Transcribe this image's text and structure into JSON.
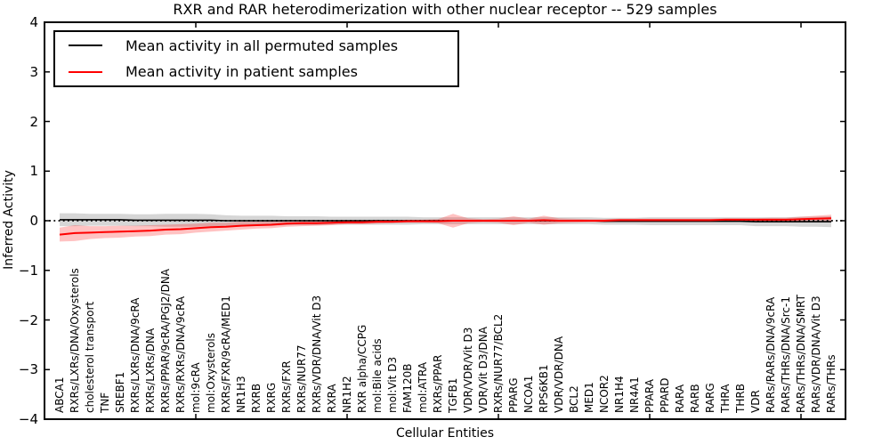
{
  "chart_data": {
    "type": "line",
    "title": "RXR and RAR heterodimerization with other nuclear receptor -- 529 samples",
    "xlabel": "Cellular Entities",
    "ylabel": "Inferred Activity",
    "ylim": [
      -4,
      4
    ],
    "yticks": [
      4,
      3,
      2,
      1,
      0,
      -1,
      -2,
      -3,
      -4
    ],
    "ytick_labels": [
      "4",
      "3",
      "2",
      "1",
      "0",
      "−1",
      "−2",
      "−3",
      "−4"
    ],
    "x_major_tick_indices": [
      10,
      20,
      30,
      40,
      50
    ],
    "grid": false,
    "zero_line_style": "dotted",
    "legend_position": "upper left",
    "categories": [
      "ABCA1",
      "RXRs/LXRs/DNA/Oxysterols",
      "cholesterol transport",
      "TNF",
      "SREBF1",
      "RXRs/LXRs/DNA/9cRA",
      "RXRs/LXRs/DNA",
      "RXRs/PPAR/9cRA/PGJ2/DNA",
      "RXRs/RXRs/DNA/9cRA",
      "mol:9cRA",
      "mol:Oxysterols",
      "RXRs/FXR/9cRA/MED1",
      "NR1H3",
      "RXRB",
      "RXRG",
      "RXRs/FXR",
      "RXRs/NUR77",
      "RXRs/VDR/DNA/Vit D3",
      "RXRA",
      "NR1H2",
      "RXR alpha/CCPG",
      "mol:Bile acids",
      "mol:Vit D3",
      "FAM120B",
      "mol:ATRA",
      "RXRs/PPAR",
      "TGFB1",
      "VDR/VDR/Vit D3",
      "VDR/Vit D3/DNA",
      "RXRs/NUR77/BCL2",
      "PPARG",
      "NCOA1",
      "RPS6KB1",
      "VDR/VDR/DNA",
      "BCL2",
      "MED1",
      "NCOR2",
      "NR1H4",
      "NR4A1",
      "PPARA",
      "PPARD",
      "RARA",
      "RARB",
      "RARG",
      "THRA",
      "THRB",
      "VDR",
      "RARs/RARs/DNA/9cRA",
      "RARs/THRs/DNA/Src-1",
      "RARs/THRs/DNA/SMRT",
      "RARs/VDR/DNA/Vit D3",
      "RARs/THRs"
    ],
    "series": [
      {
        "name": "Mean activity in all permuted samples",
        "color": "#000000",
        "band_color": "rgba(0,0,0,0.16)",
        "values": [
          0.02,
          0.02,
          0.02,
          0.02,
          0.02,
          0.01,
          0.01,
          0.01,
          0.01,
          0.01,
          0.01,
          0.0,
          0.0,
          0.0,
          0.0,
          0.0,
          0.0,
          0.0,
          0.0,
          0.0,
          0.0,
          0.0,
          0.0,
          0.0,
          0.0,
          0.0,
          0.0,
          0.0,
          0.0,
          0.0,
          0.0,
          0.0,
          0.0,
          0.0,
          0.0,
          0.0,
          -0.01,
          -0.01,
          -0.01,
          -0.01,
          -0.01,
          -0.01,
          -0.01,
          -0.01,
          -0.01,
          -0.01,
          -0.02,
          -0.02,
          -0.02,
          -0.02,
          -0.02,
          -0.02
        ],
        "band_halfwidth": [
          0.13,
          0.13,
          0.12,
          0.12,
          0.12,
          0.12,
          0.12,
          0.13,
          0.13,
          0.13,
          0.12,
          0.11,
          0.1,
          0.1,
          0.1,
          0.09,
          0.09,
          0.09,
          0.08,
          0.08,
          0.08,
          0.08,
          0.08,
          0.08,
          0.07,
          0.07,
          0.07,
          0.07,
          0.07,
          0.07,
          0.07,
          0.07,
          0.07,
          0.07,
          0.07,
          0.07,
          0.07,
          0.07,
          0.07,
          0.08,
          0.08,
          0.08,
          0.08,
          0.08,
          0.08,
          0.08,
          0.09,
          0.09,
          0.09,
          0.1,
          0.1,
          0.11
        ]
      },
      {
        "name": "Mean activity in patient samples",
        "color": "#ff0000",
        "band_color": "rgba(255,0,0,0.24)",
        "values": [
          -0.28,
          -0.25,
          -0.24,
          -0.23,
          -0.22,
          -0.21,
          -0.2,
          -0.18,
          -0.17,
          -0.15,
          -0.13,
          -0.12,
          -0.1,
          -0.09,
          -0.08,
          -0.06,
          -0.05,
          -0.05,
          -0.04,
          -0.03,
          -0.03,
          -0.02,
          -0.02,
          -0.01,
          -0.01,
          -0.01,
          0.0,
          0.0,
          0.0,
          0.0,
          0.0,
          0.0,
          0.01,
          0.0,
          0.0,
          0.0,
          0.0,
          0.01,
          0.01,
          0.01,
          0.01,
          0.01,
          0.01,
          0.01,
          0.02,
          0.02,
          0.02,
          0.02,
          0.02,
          0.03,
          0.04,
          0.05
        ],
        "band_halfwidth": [
          0.14,
          0.16,
          0.13,
          0.12,
          0.12,
          0.11,
          0.11,
          0.1,
          0.1,
          0.09,
          0.09,
          0.08,
          0.08,
          0.07,
          0.07,
          0.06,
          0.06,
          0.05,
          0.05,
          0.04,
          0.04,
          0.04,
          0.03,
          0.03,
          0.03,
          0.04,
          0.14,
          0.05,
          0.03,
          0.04,
          0.09,
          0.04,
          0.09,
          0.05,
          0.04,
          0.03,
          0.03,
          0.03,
          0.03,
          0.03,
          0.03,
          0.03,
          0.03,
          0.03,
          0.03,
          0.03,
          0.03,
          0.04,
          0.04,
          0.05,
          0.06,
          0.07
        ]
      }
    ]
  }
}
